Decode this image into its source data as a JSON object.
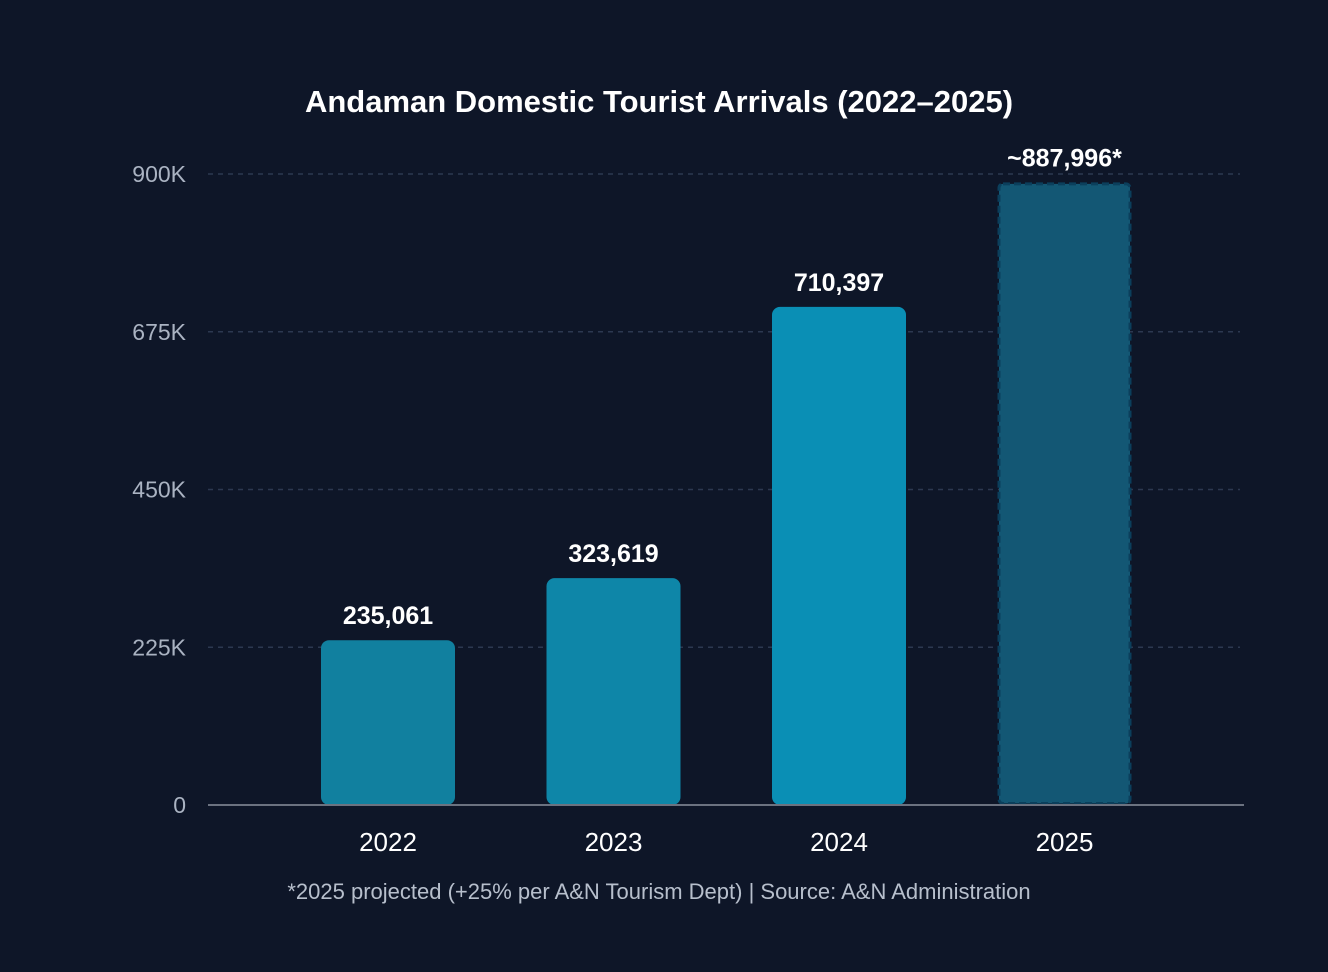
{
  "chart_data": {
    "type": "bar",
    "title": "Andaman Domestic Tourist Arrivals (2022–2025)",
    "xlabel": "",
    "ylabel": "",
    "categories": [
      "2022",
      "2023",
      "2024",
      "2025"
    ],
    "values": [
      235061,
      323619,
      710397,
      887996
    ],
    "value_labels": [
      "235,061",
      "323,619",
      "710,397",
      "~887,996*"
    ],
    "projected": [
      false,
      false,
      false,
      true
    ],
    "y_ticks": [
      0,
      225000,
      450000,
      675000,
      900000
    ],
    "y_tick_labels": [
      "0",
      "225K",
      "450K",
      "675K",
      "900K"
    ],
    "ylim": [
      0,
      900000
    ],
    "grid": true,
    "legend": "none",
    "footnote": "*2025 projected (+25% per A&N Tourism Dept) | Source: A&N Administration",
    "colors": {
      "background": "#0e1628",
      "bars": [
        "#11809f",
        "#0e86a8",
        "#0a8fb5",
        "#135774"
      ],
      "projected_border": "#0b3f5c",
      "grid": "#2c3850",
      "axis": "#6b7280"
    }
  }
}
